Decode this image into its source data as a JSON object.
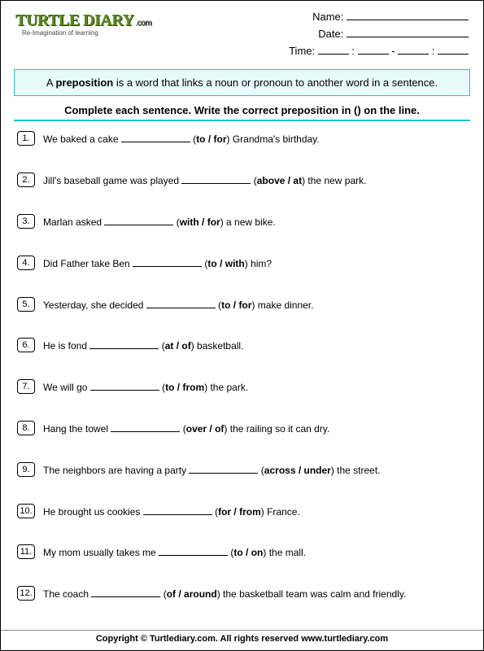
{
  "logo": {
    "brand": "TURTLE DIARY",
    "suffix": ".com",
    "tagline": "Re-Imagination of learning"
  },
  "header_fields": {
    "name_label": "Name:",
    "date_label": "Date:",
    "time_label": "Time:"
  },
  "definition": {
    "prefix": "A ",
    "keyword": "preposition",
    "rest": " is a word that links a noun or pronoun to another word in a sentence."
  },
  "instruction": "Complete each sentence. Write the correct preposition in () on the line.",
  "questions": [
    {
      "num": "1.",
      "before": "We baked a cake ",
      "options": "to / for",
      "after": ") Grandma's birthday."
    },
    {
      "num": "2.",
      "before": "Jill's baseball game was played ",
      "options": "above / at",
      "after": ") the new park."
    },
    {
      "num": "3.",
      "before": " Marlan asked ",
      "options": "with / for",
      "after": ") a new bike."
    },
    {
      "num": "4.",
      "before": " Did Father take Ben ",
      "options": "to / with",
      "after": ") him?"
    },
    {
      "num": "5.",
      "before": "Yesterday, she decided ",
      "options": "to / for",
      "after": ") make dinner."
    },
    {
      "num": "6.",
      "before": "He is fond ",
      "options": "at / of",
      "after": ")  basketball."
    },
    {
      "num": "7.",
      "before": " We will go ",
      "options": "to / from",
      "after": ") the park."
    },
    {
      "num": "8.",
      "before": "Hang the towel ",
      "options": "over / of",
      "after": ") the railing so it can dry."
    },
    {
      "num": "9.",
      "before": "The neighbors are having a party ",
      "options": "across / under",
      "after": ") the street."
    },
    {
      "num": "10.",
      "before": "He brought us cookies ",
      "options": "for / from",
      "after": ") France."
    },
    {
      "num": "11.",
      "before": "My mom usually takes me ",
      "options": "to / on",
      "after": ") the mall."
    },
    {
      "num": "12.",
      "before": "The coach ",
      "options": "of / around",
      "after": ") the basketball team was calm and friendly."
    }
  ],
  "footer": "Copyright © Turtlediary.com. All rights reserved   www.turtlediary.com"
}
